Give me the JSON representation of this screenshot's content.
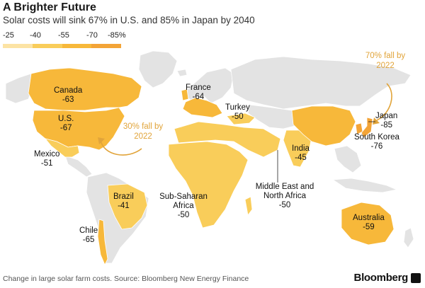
{
  "header": {
    "title": "A Brighter Future",
    "subtitle": "Solar costs will sink 67% in U.S. and 85% in Japan by 2040"
  },
  "legend": {
    "ticks": [
      "-25",
      "-40",
      "-55",
      "-70",
      "-85%"
    ],
    "colors": [
      "#fce3a4",
      "#f9cd5a",
      "#f7b83a",
      "#f3a437"
    ]
  },
  "palette": {
    "land": "#e3e3e3",
    "water": "#ffffff",
    "border": "#ffffff",
    "annotation": "#e1a43a"
  },
  "regions": [
    {
      "name": "Canada",
      "value": "-63"
    },
    {
      "name": "U.S.",
      "value": "-67"
    },
    {
      "name": "Mexico",
      "value": "-51"
    },
    {
      "name": "Brazil",
      "value": "-41"
    },
    {
      "name": "Chile",
      "value": "-65"
    },
    {
      "name": "France",
      "value": "-64"
    },
    {
      "name": "Turkey",
      "value": "-50"
    },
    {
      "name": "India",
      "value": "-45"
    },
    {
      "name": "Japan",
      "value": "-85"
    },
    {
      "name": "South Korea",
      "value": "-76"
    },
    {
      "name": "Middle East and North Africa",
      "value": "-50"
    },
    {
      "name": "Sub-Saharan Africa",
      "value": "-50"
    },
    {
      "name": "Australia",
      "value": "-59"
    }
  ],
  "annotations": {
    "us_fall": "30% fall by 2022",
    "japan_fall": "70% fall by 2022"
  },
  "footer": {
    "source": "Change in large solar farm costs. Source: Bloomberg New Energy Finance",
    "brand": "Bloomberg"
  }
}
